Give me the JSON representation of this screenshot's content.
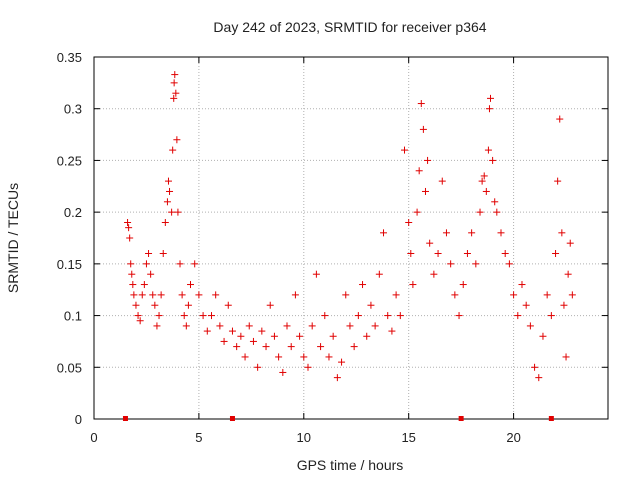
{
  "chart_data": {
    "type": "scatter",
    "title": "Day 242 of 2023, SRMTID for receiver p364",
    "xlabel": "GPS time / hours",
    "ylabel": "SRMTID / TECUs",
    "xlim": [
      0,
      24.5
    ],
    "ylim": [
      0,
      0.35
    ],
    "xticks": [
      0,
      5,
      10,
      15,
      20
    ],
    "yticks": [
      0,
      0.05,
      0.1,
      0.15,
      0.2,
      0.25,
      0.3,
      0.35
    ],
    "ytick_labels": [
      "0",
      "0.05",
      "0.1",
      "0.15",
      "0.2",
      "0.25",
      "0.3",
      "0.35"
    ],
    "grid": true,
    "marker": "+",
    "color": "#e00000",
    "series": [
      {
        "name": "SRMTID",
        "points": [
          [
            1.6,
            0.19
          ],
          [
            1.65,
            0.185
          ],
          [
            1.7,
            0.175
          ],
          [
            1.75,
            0.15
          ],
          [
            1.8,
            0.14
          ],
          [
            1.85,
            0.13
          ],
          [
            1.9,
            0.12
          ],
          [
            2.0,
            0.11
          ],
          [
            2.1,
            0.1
          ],
          [
            2.2,
            0.095
          ],
          [
            2.3,
            0.12
          ],
          [
            2.4,
            0.13
          ],
          [
            2.5,
            0.15
          ],
          [
            2.6,
            0.16
          ],
          [
            2.7,
            0.14
          ],
          [
            2.8,
            0.12
          ],
          [
            2.9,
            0.11
          ],
          [
            3.0,
            0.09
          ],
          [
            3.1,
            0.1
          ],
          [
            3.2,
            0.12
          ],
          [
            3.3,
            0.16
          ],
          [
            3.4,
            0.19
          ],
          [
            3.5,
            0.21
          ],
          [
            3.55,
            0.23
          ],
          [
            3.6,
            0.22
          ],
          [
            3.7,
            0.2
          ],
          [
            3.75,
            0.26
          ],
          [
            3.8,
            0.31
          ],
          [
            3.82,
            0.325
          ],
          [
            3.85,
            0.333
          ],
          [
            3.9,
            0.315
          ],
          [
            3.95,
            0.27
          ],
          [
            4.0,
            0.2
          ],
          [
            4.1,
            0.15
          ],
          [
            4.2,
            0.12
          ],
          [
            4.3,
            0.1
          ],
          [
            4.4,
            0.09
          ],
          [
            4.5,
            0.11
          ],
          [
            4.6,
            0.13
          ],
          [
            4.8,
            0.15
          ],
          [
            5.0,
            0.12
          ],
          [
            5.2,
            0.1
          ],
          [
            5.4,
            0.085
          ],
          [
            5.6,
            0.1
          ],
          [
            5.8,
            0.12
          ],
          [
            6.0,
            0.09
          ],
          [
            6.2,
            0.075
          ],
          [
            6.4,
            0.11
          ],
          [
            6.6,
            0.085
          ],
          [
            6.8,
            0.07
          ],
          [
            7.0,
            0.08
          ],
          [
            7.2,
            0.06
          ],
          [
            7.4,
            0.09
          ],
          [
            7.6,
            0.075
          ],
          [
            7.8,
            0.05
          ],
          [
            8.0,
            0.085
          ],
          [
            8.2,
            0.07
          ],
          [
            8.4,
            0.11
          ],
          [
            8.6,
            0.08
          ],
          [
            8.8,
            0.06
          ],
          [
            9.0,
            0.045
          ],
          [
            9.2,
            0.09
          ],
          [
            9.4,
            0.07
          ],
          [
            9.6,
            0.12
          ],
          [
            9.8,
            0.08
          ],
          [
            10.0,
            0.06
          ],
          [
            10.2,
            0.05
          ],
          [
            10.4,
            0.09
          ],
          [
            10.6,
            0.14
          ],
          [
            10.8,
            0.07
          ],
          [
            11.0,
            0.1
          ],
          [
            11.2,
            0.06
          ],
          [
            11.4,
            0.08
          ],
          [
            11.6,
            0.04
          ],
          [
            11.8,
            0.055
          ],
          [
            12.0,
            0.12
          ],
          [
            12.2,
            0.09
          ],
          [
            12.4,
            0.07
          ],
          [
            12.6,
            0.1
          ],
          [
            12.8,
            0.13
          ],
          [
            13.0,
            0.08
          ],
          [
            13.2,
            0.11
          ],
          [
            13.4,
            0.09
          ],
          [
            13.6,
            0.14
          ],
          [
            13.8,
            0.18
          ],
          [
            14.0,
            0.1
          ],
          [
            14.2,
            0.085
          ],
          [
            14.4,
            0.12
          ],
          [
            14.6,
            0.1
          ],
          [
            14.8,
            0.26
          ],
          [
            15.0,
            0.19
          ],
          [
            15.1,
            0.16
          ],
          [
            15.2,
            0.13
          ],
          [
            15.4,
            0.2
          ],
          [
            15.5,
            0.24
          ],
          [
            15.6,
            0.305
          ],
          [
            15.7,
            0.28
          ],
          [
            15.8,
            0.22
          ],
          [
            15.9,
            0.25
          ],
          [
            16.0,
            0.17
          ],
          [
            16.2,
            0.14
          ],
          [
            16.4,
            0.16
          ],
          [
            16.6,
            0.23
          ],
          [
            16.8,
            0.18
          ],
          [
            17.0,
            0.15
          ],
          [
            17.2,
            0.12
          ],
          [
            17.4,
            0.1
          ],
          [
            17.6,
            0.13
          ],
          [
            17.8,
            0.16
          ],
          [
            18.0,
            0.18
          ],
          [
            18.2,
            0.15
          ],
          [
            18.4,
            0.2
          ],
          [
            18.5,
            0.23
          ],
          [
            18.6,
            0.235
          ],
          [
            18.7,
            0.22
          ],
          [
            18.8,
            0.26
          ],
          [
            18.85,
            0.3
          ],
          [
            18.9,
            0.31
          ],
          [
            19.0,
            0.25
          ],
          [
            19.1,
            0.21
          ],
          [
            19.2,
            0.2
          ],
          [
            19.4,
            0.18
          ],
          [
            19.6,
            0.16
          ],
          [
            19.8,
            0.15
          ],
          [
            20.0,
            0.12
          ],
          [
            20.2,
            0.1
          ],
          [
            20.4,
            0.13
          ],
          [
            20.6,
            0.11
          ],
          [
            20.8,
            0.09
          ],
          [
            21.0,
            0.05
          ],
          [
            21.2,
            0.04
          ],
          [
            21.4,
            0.08
          ],
          [
            21.6,
            0.12
          ],
          [
            21.8,
            0.1
          ],
          [
            22.0,
            0.16
          ],
          [
            22.1,
            0.23
          ],
          [
            22.2,
            0.29
          ],
          [
            22.3,
            0.18
          ],
          [
            22.4,
            0.11
          ],
          [
            22.5,
            0.06
          ],
          [
            22.6,
            0.14
          ],
          [
            22.7,
            0.17
          ],
          [
            22.8,
            0.12
          ]
        ]
      }
    ],
    "baseline_markers_x": [
      1.5,
      6.6,
      17.5,
      21.8
    ]
  }
}
